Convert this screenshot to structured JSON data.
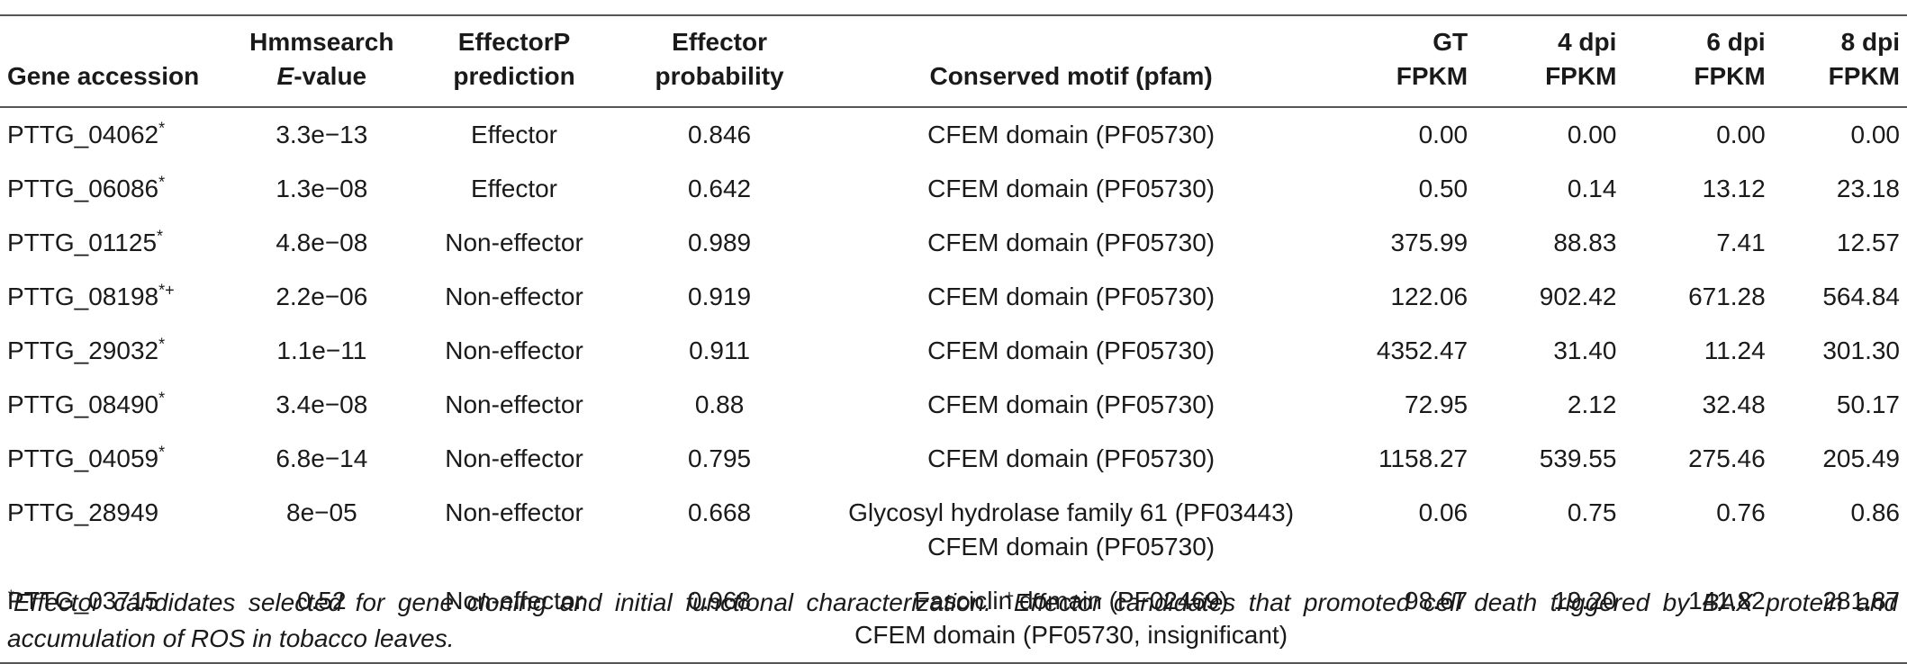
{
  "table": {
    "headers": {
      "gene": "Gene accession",
      "hmm_l1": "Hmmsearch",
      "hmm_l2_italic": "E",
      "hmm_l2_rest": "-value",
      "ep_l1": "EffectorP",
      "ep_l2": "prediction",
      "prob_l1": "Effector",
      "prob_l2": "probability",
      "motif": "Conserved motif (pfam)",
      "gt_l1": "GT",
      "gt_l2": "FPKM",
      "d4_l1": "4 dpi",
      "d4_l2": "FPKM",
      "d6_l1": "6 dpi",
      "d6_l2": "FPKM",
      "d8_l1": "8 dpi",
      "d8_l2": "FPKM"
    },
    "rows": [
      {
        "gene": "PTTG_04062",
        "mark": "*",
        "evalue": "3.3e−13",
        "pred": "Effector",
        "prob": "0.846",
        "motif1": "CFEM domain (PF05730)",
        "motif2": "",
        "gt": "0.00",
        "d4": "0.00",
        "d6": "0.00",
        "d8": "0.00"
      },
      {
        "gene": "PTTG_06086",
        "mark": "*",
        "evalue": "1.3e−08",
        "pred": "Effector",
        "prob": "0.642",
        "motif1": "CFEM domain (PF05730)",
        "motif2": "",
        "gt": "0.50",
        "d4": "0.14",
        "d6": "13.12",
        "d8": "23.18"
      },
      {
        "gene": "PTTG_01125",
        "mark": "*",
        "evalue": "4.8e−08",
        "pred": "Non-effector",
        "prob": "0.989",
        "motif1": "CFEM domain (PF05730)",
        "motif2": "",
        "gt": "375.99",
        "d4": "88.83",
        "d6": "7.41",
        "d8": "12.57"
      },
      {
        "gene": "PTTG_08198",
        "mark": "*+",
        "evalue": "2.2e−06",
        "pred": "Non-effector",
        "prob": "0.919",
        "motif1": "CFEM domain (PF05730)",
        "motif2": "",
        "gt": "122.06",
        "d4": "902.42",
        "d6": "671.28",
        "d8": "564.84"
      },
      {
        "gene": "PTTG_29032",
        "mark": "*",
        "evalue": "1.1e−11",
        "pred": "Non-effector",
        "prob": "0.911",
        "motif1": "CFEM domain (PF05730)",
        "motif2": "",
        "gt": "4352.47",
        "d4": "31.40",
        "d6": "11.24",
        "d8": "301.30"
      },
      {
        "gene": "PTTG_08490",
        "mark": "*",
        "evalue": "3.4e−08",
        "pred": "Non-effector",
        "prob": "0.88",
        "motif1": "CFEM domain (PF05730)",
        "motif2": "",
        "gt": "72.95",
        "d4": "2.12",
        "d6": "32.48",
        "d8": "50.17"
      },
      {
        "gene": "PTTG_04059",
        "mark": "*",
        "evalue": "6.8e−14",
        "pred": "Non-effector",
        "prob": "0.795",
        "motif1": "CFEM domain (PF05730)",
        "motif2": "",
        "gt": "1158.27",
        "d4": "539.55",
        "d6": "275.46",
        "d8": "205.49"
      },
      {
        "gene": "PTTG_28949",
        "mark": "",
        "evalue": "8e−05",
        "pred": "Non-effector",
        "prob": "0.668",
        "motif1": "Glycosyl hydrolase family 61 (PF03443)",
        "motif2": "CFEM domain (PF05730)",
        "gt": "0.06",
        "d4": "0.75",
        "d6": "0.76",
        "d8": "0.86"
      },
      {
        "gene": "PTTG_03715",
        "mark": "",
        "evalue": "0.52",
        "pred": "Non-effector",
        "prob": "0.968",
        "motif1": "Fasciclin domain (PF02469)",
        "motif2": "CFEM domain (PF05730, insignificant)",
        "gt": "98.67",
        "d4": "19.20",
        "d6": "141.82",
        "d8": "281.87"
      }
    ]
  },
  "footnote": {
    "mark1": "*",
    "text1": "Effector candidates selected for gene cloning and initial functional characterization. ",
    "mark2": "+",
    "text2": "Effector candidates that promoted cell death triggered by BAX protein and accumulation of ROS in tobacco leaves."
  }
}
